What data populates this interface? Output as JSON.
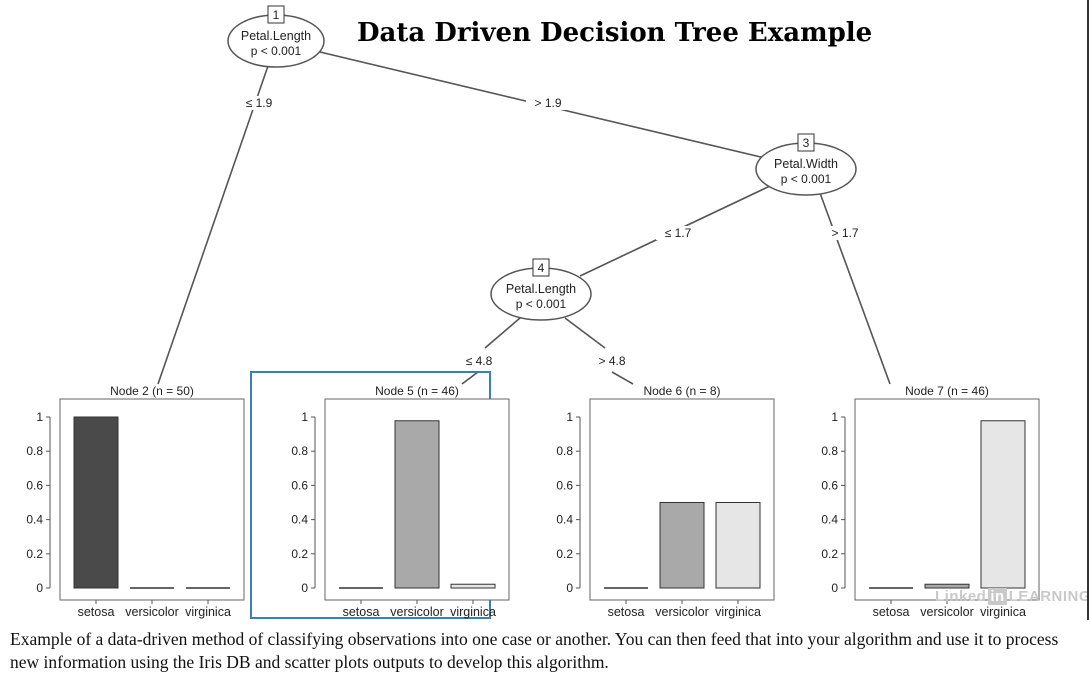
{
  "title": "Data Driven Decision Tree Example",
  "caption": "Example of a data-driven method of classifying observations into one case or another. You can then feed that into your algorithm and use it to process new information using the Iris DB and scatter plots outputs to develop this algorithm.",
  "watermark": {
    "brand": "Linked",
    "in": "in",
    "suffix": "LEARNING"
  },
  "tree": {
    "inner_nodes": [
      {
        "id": "1",
        "variable": "Petal.Length",
        "p": "p < 0.001"
      },
      {
        "id": "3",
        "variable": "Petal.Width",
        "p": "p < 0.001"
      },
      {
        "id": "4",
        "variable": "Petal.Length",
        "p": "p < 0.001"
      }
    ],
    "edges": [
      {
        "label": "≤ 1.9"
      },
      {
        "label": "> 1.9"
      },
      {
        "label": "≤ 1.7"
      },
      {
        "label": "> 1.7"
      },
      {
        "label": "≤ 4.8"
      },
      {
        "label": "> 4.8"
      }
    ]
  },
  "chart_data": [
    {
      "type": "bar",
      "title": "Node 2 (n = 50)",
      "categories": [
        "setosa",
        "versicolor",
        "virginica"
      ],
      "values": [
        1.0,
        0.0,
        0.0
      ],
      "ylim": [
        0,
        1
      ],
      "yticks": [
        "0",
        "0.2",
        "0.4",
        "0.6",
        "0.8",
        "1"
      ],
      "highlighted": false
    },
    {
      "type": "bar",
      "title": "Node 5 (n = 46)",
      "categories": [
        "setosa",
        "versicolor",
        "virginica"
      ],
      "values": [
        0.0,
        0.978,
        0.022
      ],
      "ylim": [
        0,
        1
      ],
      "yticks": [
        "0",
        "0.2",
        "0.4",
        "0.6",
        "0.8",
        "1"
      ],
      "highlighted": true
    },
    {
      "type": "bar",
      "title": "Node 6 (n = 8)",
      "categories": [
        "setosa",
        "versicolor",
        "virginica"
      ],
      "values": [
        0.0,
        0.5,
        0.5
      ],
      "ylim": [
        0,
        1
      ],
      "yticks": [
        "0",
        "0.2",
        "0.4",
        "0.6",
        "0.8",
        "1"
      ],
      "highlighted": false
    },
    {
      "type": "bar",
      "title": "Node 7 (n = 46)",
      "categories": [
        "setosa",
        "versicolor",
        "virginica"
      ],
      "values": [
        0.0,
        0.022,
        0.978
      ],
      "ylim": [
        0,
        1
      ],
      "yticks": [
        "0",
        "0.2",
        "0.4",
        "0.6",
        "0.8",
        "1"
      ],
      "highlighted": false
    }
  ],
  "colors": {
    "setosa": "#4a4a4a",
    "versicolor": "#a9a9a9",
    "virginica": "#e6e6e6",
    "highlight": "#3a7fb8",
    "line": "#555555"
  }
}
